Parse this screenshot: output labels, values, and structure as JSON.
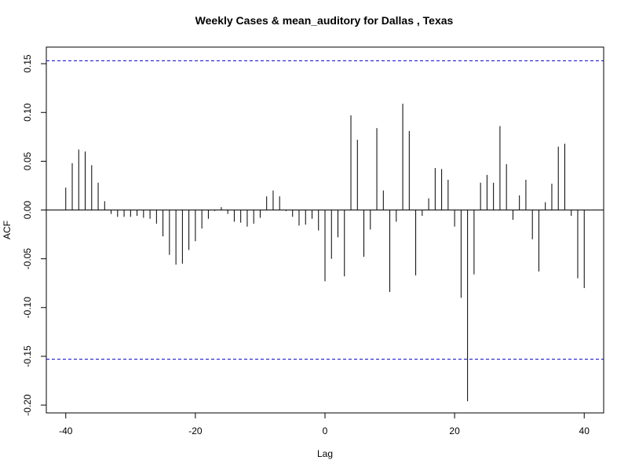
{
  "chart_data": {
    "type": "bar",
    "title": "Weekly Cases & mean_auditory for Dallas , Texas",
    "xlabel": "Lag",
    "ylabel": "ACF",
    "xlim": [
      -43,
      43
    ],
    "ylim": [
      -0.208,
      0.167
    ],
    "x_ticks": [
      -40,
      -20,
      0,
      20,
      40
    ],
    "x_tick_labels": [
      "-40",
      "-20",
      "0",
      "20",
      "40"
    ],
    "y_ticks": [
      -0.2,
      -0.15,
      -0.1,
      -0.05,
      0.0,
      0.05,
      0.1,
      0.15
    ],
    "y_tick_labels": [
      "-0.20",
      "-0.15",
      "-0.10",
      "-0.05",
      "0.00",
      "0.05",
      "0.10",
      "0.15"
    ],
    "confidence_band": 0.153,
    "colors": {
      "bars": "#000000",
      "confidence": "#0000cc",
      "zero_line": "#000000"
    },
    "grid": false,
    "lags": [
      -40,
      -39,
      -38,
      -37,
      -36,
      -35,
      -34,
      -33,
      -32,
      -31,
      -30,
      -29,
      -28,
      -27,
      -26,
      -25,
      -24,
      -23,
      -22,
      -21,
      -20,
      -19,
      -18,
      -17,
      -16,
      -15,
      -14,
      -13,
      -12,
      -11,
      -10,
      -9,
      -8,
      -7,
      -6,
      -5,
      -4,
      -3,
      -2,
      -1,
      0,
      1,
      2,
      3,
      4,
      5,
      6,
      7,
      8,
      9,
      10,
      11,
      12,
      13,
      14,
      15,
      16,
      17,
      18,
      19,
      20,
      21,
      22,
      23,
      24,
      25,
      26,
      27,
      28,
      29,
      30,
      31,
      32,
      33,
      34,
      35,
      36,
      37,
      38,
      39,
      40
    ],
    "values": [
      0.023,
      0.048,
      0.062,
      0.06,
      0.046,
      0.028,
      0.009,
      -0.004,
      -0.007,
      -0.007,
      -0.007,
      -0.006,
      -0.008,
      -0.009,
      -0.014,
      -0.027,
      -0.046,
      -0.056,
      -0.055,
      -0.041,
      -0.032,
      -0.019,
      -0.009,
      -0.001,
      0.003,
      -0.004,
      -0.012,
      -0.013,
      -0.017,
      -0.014,
      -0.008,
      0.014,
      0.02,
      0.014,
      -0.001,
      -0.007,
      -0.016,
      -0.015,
      -0.009,
      -0.021,
      -0.073,
      -0.05,
      -0.028,
      -0.068,
      0.097,
      0.072,
      -0.048,
      -0.02,
      0.084,
      0.02,
      -0.084,
      -0.012,
      0.109,
      0.081,
      -0.067,
      -0.006,
      0.012,
      0.043,
      0.042,
      0.031,
      -0.017,
      -0.09,
      -0.196,
      -0.066,
      0.028,
      0.036,
      0.028,
      0.086,
      0.047,
      -0.01,
      0.015,
      0.031,
      -0.03,
      -0.063,
      0.008,
      0.027,
      0.065,
      0.068,
      -0.006,
      -0.07,
      -0.08
    ]
  }
}
